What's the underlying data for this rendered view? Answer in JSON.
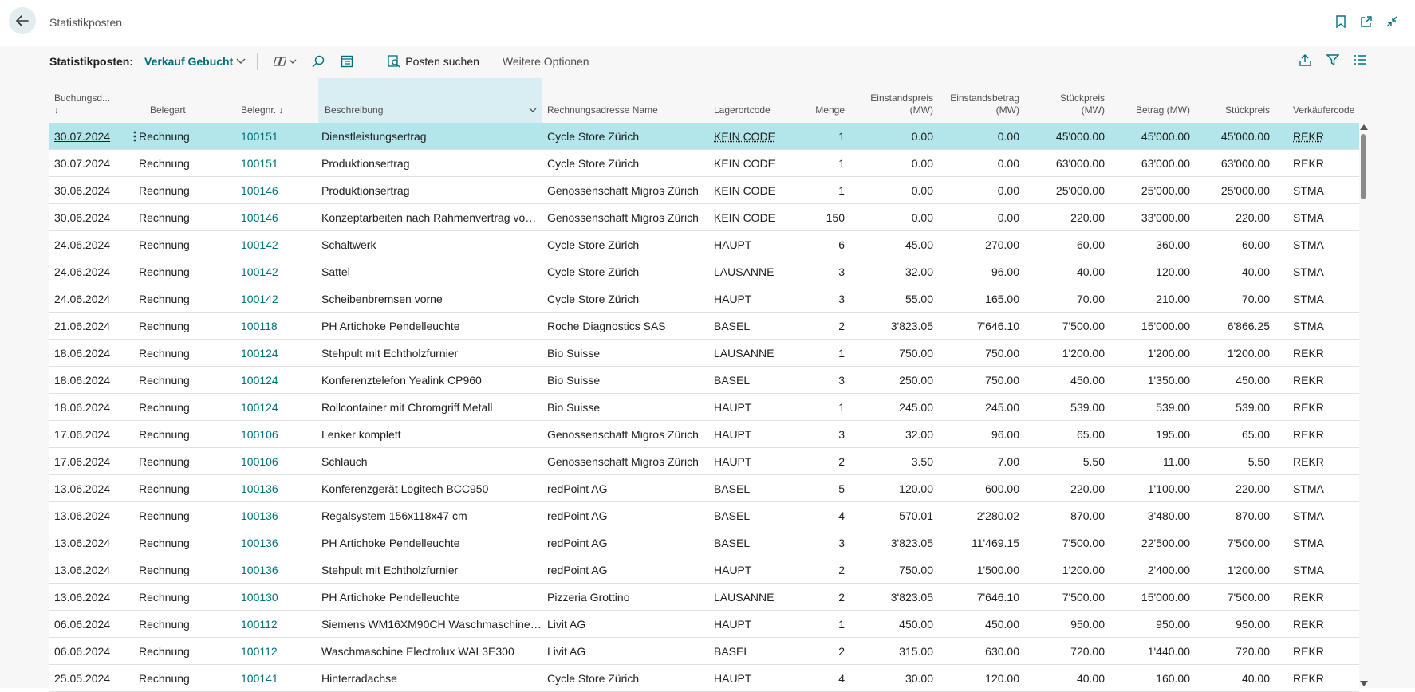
{
  "page": {
    "title": "Statistikposten"
  },
  "actionbar": {
    "label": "Statistikposten:",
    "view": "Verkauf Gebucht",
    "find_entries": "Posten suchen",
    "more_options": "Weitere Optionen"
  },
  "columns": {
    "buchungsdatum": "Buchungsd...",
    "buchungsdatum_sort": "↓",
    "belegart": "Belegart",
    "belegnr": "Belegnr. ↓",
    "beschreibung": "Beschreibung",
    "rechnungsadresse": "Rechnungsadresse Name",
    "lagerortcode": "Lagerortcode",
    "menge": "Menge",
    "einstandspreis_1": "Einstandspreis",
    "einstandspreis_2": "(MW)",
    "einstandsbetrag_1": "Einstandsbetrag",
    "einstandsbetrag_2": "(MW)",
    "stueckpreis_mw_1": "Stückpreis",
    "stueckpreis_mw_2": "(MW)",
    "betrag": "Betrag (MW)",
    "stueckpreis": "Stückpreis",
    "verkaeufercode": "Verkäufercode"
  },
  "rows": [
    {
      "d": "30.07.2024",
      "a": "Rechnung",
      "n": "100151",
      "b": "Dienstleistungsertrag",
      "r": "Cycle Store Zürich",
      "l": "KEIN CODE",
      "m": "1",
      "ep": "0.00",
      "eb": "0.00",
      "sm": "45'000.00",
      "bt": "45'000.00",
      "sp": "45'000.00",
      "v": "REKR"
    },
    {
      "d": "30.07.2024",
      "a": "Rechnung",
      "n": "100151",
      "b": "Produktionsertrag",
      "r": "Cycle Store Zürich",
      "l": "KEIN CODE",
      "m": "1",
      "ep": "0.00",
      "eb": "0.00",
      "sm": "63'000.00",
      "bt": "63'000.00",
      "sp": "63'000.00",
      "v": "REKR"
    },
    {
      "d": "30.06.2024",
      "a": "Rechnung",
      "n": "100146",
      "b": "Produktionsertrag",
      "r": "Genossenschaft Migros Zürich",
      "l": "KEIN CODE",
      "m": "1",
      "ep": "0.00",
      "eb": "0.00",
      "sm": "25'000.00",
      "bt": "25'000.00",
      "sp": "25'000.00",
      "v": "STMA"
    },
    {
      "d": "30.06.2024",
      "a": "Rechnung",
      "n": "100146",
      "b": "Konzeptarbeiten nach Rahmenvertrag vom...",
      "r": "Genossenschaft Migros Zürich",
      "l": "KEIN CODE",
      "m": "150",
      "ep": "0.00",
      "eb": "0.00",
      "sm": "220.00",
      "bt": "33'000.00",
      "sp": "220.00",
      "v": "STMA"
    },
    {
      "d": "24.06.2024",
      "a": "Rechnung",
      "n": "100142",
      "b": "Schaltwerk",
      "r": "Cycle Store Zürich",
      "l": "HAUPT",
      "m": "6",
      "ep": "45.00",
      "eb": "270.00",
      "sm": "60.00",
      "bt": "360.00",
      "sp": "60.00",
      "v": "STMA"
    },
    {
      "d": "24.06.2024",
      "a": "Rechnung",
      "n": "100142",
      "b": "Sattel",
      "r": "Cycle Store Zürich",
      "l": "LAUSANNE",
      "m": "3",
      "ep": "32.00",
      "eb": "96.00",
      "sm": "40.00",
      "bt": "120.00",
      "sp": "40.00",
      "v": "STMA"
    },
    {
      "d": "24.06.2024",
      "a": "Rechnung",
      "n": "100142",
      "b": "Scheibenbremsen vorne",
      "r": "Cycle Store Zürich",
      "l": "HAUPT",
      "m": "3",
      "ep": "55.00",
      "eb": "165.00",
      "sm": "70.00",
      "bt": "210.00",
      "sp": "70.00",
      "v": "STMA"
    },
    {
      "d": "21.06.2024",
      "a": "Rechnung",
      "n": "100118",
      "b": "PH Artichoke Pendelleuchte",
      "r": "Roche Diagnostics SAS",
      "l": "BASEL",
      "m": "2",
      "ep": "3'823.05",
      "eb": "7'646.10",
      "sm": "7'500.00",
      "bt": "15'000.00",
      "sp": "6'866.25",
      "v": "STMA"
    },
    {
      "d": "18.06.2024",
      "a": "Rechnung",
      "n": "100124",
      "b": "Stehpult mit Echtholzfurnier",
      "r": "Bio Suisse",
      "l": "LAUSANNE",
      "m": "1",
      "ep": "750.00",
      "eb": "750.00",
      "sm": "1'200.00",
      "bt": "1'200.00",
      "sp": "1'200.00",
      "v": "REKR"
    },
    {
      "d": "18.06.2024",
      "a": "Rechnung",
      "n": "100124",
      "b": "Konferenztelefon Yealink CP960",
      "r": "Bio Suisse",
      "l": "BASEL",
      "m": "3",
      "ep": "250.00",
      "eb": "750.00",
      "sm": "450.00",
      "bt": "1'350.00",
      "sp": "450.00",
      "v": "REKR"
    },
    {
      "d": "18.06.2024",
      "a": "Rechnung",
      "n": "100124",
      "b": "Rollcontainer mit Chromgriff Metall",
      "r": "Bio Suisse",
      "l": "HAUPT",
      "m": "1",
      "ep": "245.00",
      "eb": "245.00",
      "sm": "539.00",
      "bt": "539.00",
      "sp": "539.00",
      "v": "REKR"
    },
    {
      "d": "17.06.2024",
      "a": "Rechnung",
      "n": "100106",
      "b": "Lenker komplett",
      "r": "Genossenschaft Migros Zürich",
      "l": "HAUPT",
      "m": "3",
      "ep": "32.00",
      "eb": "96.00",
      "sm": "65.00",
      "bt": "195.00",
      "sp": "65.00",
      "v": "REKR"
    },
    {
      "d": "17.06.2024",
      "a": "Rechnung",
      "n": "100106",
      "b": "Schlauch",
      "r": "Genossenschaft Migros Zürich",
      "l": "HAUPT",
      "m": "2",
      "ep": "3.50",
      "eb": "7.00",
      "sm": "5.50",
      "bt": "11.00",
      "sp": "5.50",
      "v": "REKR"
    },
    {
      "d": "13.06.2024",
      "a": "Rechnung",
      "n": "100136",
      "b": "Konferenzgerät Logitech BCC950",
      "r": "redPoint AG",
      "l": "BASEL",
      "m": "5",
      "ep": "120.00",
      "eb": "600.00",
      "sm": "220.00",
      "bt": "1'100.00",
      "sp": "220.00",
      "v": "STMA"
    },
    {
      "d": "13.06.2024",
      "a": "Rechnung",
      "n": "100136",
      "b": "Regalsystem 156x118x47 cm",
      "r": "redPoint AG",
      "l": "BASEL",
      "m": "4",
      "ep": "570.01",
      "eb": "2'280.02",
      "sm": "870.00",
      "bt": "3'480.00",
      "sp": "870.00",
      "v": "STMA"
    },
    {
      "d": "13.06.2024",
      "a": "Rechnung",
      "n": "100136",
      "b": "PH Artichoke Pendelleuchte",
      "r": "redPoint AG",
      "l": "BASEL",
      "m": "3",
      "ep": "3'823.05",
      "eb": "11'469.15",
      "sm": "7'500.00",
      "bt": "22'500.00",
      "sp": "7'500.00",
      "v": "STMA"
    },
    {
      "d": "13.06.2024",
      "a": "Rechnung",
      "n": "100136",
      "b": "Stehpult mit Echtholzfurnier",
      "r": "redPoint AG",
      "l": "HAUPT",
      "m": "2",
      "ep": "750.00",
      "eb": "1'500.00",
      "sm": "1'200.00",
      "bt": "2'400.00",
      "sp": "1'200.00",
      "v": "STMA"
    },
    {
      "d": "13.06.2024",
      "a": "Rechnung",
      "n": "100130",
      "b": "PH Artichoke Pendelleuchte",
      "r": "Pizzeria Grottino",
      "l": "LAUSANNE",
      "m": "2",
      "ep": "3'823.05",
      "eb": "7'646.10",
      "sm": "7'500.00",
      "bt": "15'000.00",
      "sp": "7'500.00",
      "v": "REKR"
    },
    {
      "d": "06.06.2024",
      "a": "Rechnung",
      "n": "100112",
      "b": " Siemens WM16XM90CH Waschmaschine ...",
      "r": "Livit AG",
      "l": "HAUPT",
      "m": "1",
      "ep": "450.00",
      "eb": "450.00",
      "sm": "950.00",
      "bt": "950.00",
      "sp": "950.00",
      "v": "REKR"
    },
    {
      "d": "06.06.2024",
      "a": "Rechnung",
      "n": "100112",
      "b": "Waschmaschine Electrolux WAL3E300",
      "r": "Livit AG",
      "l": "BASEL",
      "m": "2",
      "ep": "315.00",
      "eb": "630.00",
      "sm": "720.00",
      "bt": "1'440.00",
      "sp": "720.00",
      "v": "REKR"
    },
    {
      "d": "25.05.2024",
      "a": "Rechnung",
      "n": "100141",
      "b": "Hinterradachse",
      "r": "Cycle Store Zürich",
      "l": "HAUPT",
      "m": "4",
      "ep": "30.00",
      "eb": "120.00",
      "sm": "40.00",
      "bt": "160.00",
      "sp": "40.00",
      "v": "REKR"
    }
  ],
  "colors": {
    "accent": "#00707a",
    "active_row": "#b2e6ea",
    "selected_header": "#d8eef2"
  }
}
